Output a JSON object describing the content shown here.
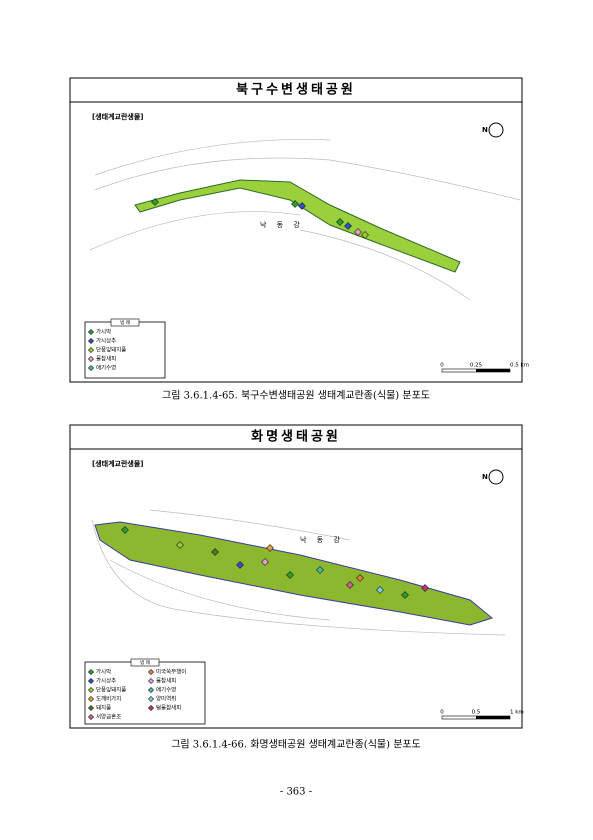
{
  "figures": [
    {
      "title": "북구수변생태공원",
      "label": "[생태계교란생물]",
      "north": "N",
      "river": "낙 동 강",
      "legend": {
        "header": "범 례",
        "items": [
          {
            "name": "가시박",
            "color": "#2ca02c"
          },
          {
            "name": "가시상추",
            "color": "#3050c8"
          },
          {
            "name": "단풍잎돼지풀",
            "color": "#9acd32"
          },
          {
            "name": "물참새피",
            "color": "#e8a0c8"
          },
          {
            "name": "애기수영",
            "color": "#40c0a0"
          }
        ]
      },
      "scale": [
        "0",
        "0.25",
        "0.5 km"
      ],
      "caption": "그림 3.6.1.4-65. 북구수변생태공원 생태계교란종(식물) 분포도"
    },
    {
      "title": "화명생태공원",
      "label": "[생태계교란생물]",
      "north": "N",
      "river": "낙 동 강",
      "legend": {
        "header": "범 례",
        "items": [
          {
            "name": "가시박",
            "color": "#2ca02c"
          },
          {
            "name": "가시상추",
            "color": "#3050c8"
          },
          {
            "name": "단풍잎돼지풀",
            "color": "#9acd32"
          },
          {
            "name": "도깨비가지",
            "color": "#e0a040"
          },
          {
            "name": "돼지풀",
            "color": "#4a7a2a"
          },
          {
            "name": "서양금혼초",
            "color": "#d06090"
          },
          {
            "name": "미국쑥부쟁이",
            "color": "#e08040"
          },
          {
            "name": "물참새피",
            "color": "#e8a0c8"
          },
          {
            "name": "애기수영",
            "color": "#40c0a0"
          },
          {
            "name": "양미역취",
            "color": "#7ad0e0"
          },
          {
            "name": "털물참새피",
            "color": "#c03080"
          }
        ]
      },
      "scale": [
        "0",
        "0.5",
        "1 km"
      ],
      "caption": "그림 3.6.1.4-66. 화명생태공원 생태계교란종(식물) 분포도"
    }
  ],
  "page_number": "- 363 -"
}
